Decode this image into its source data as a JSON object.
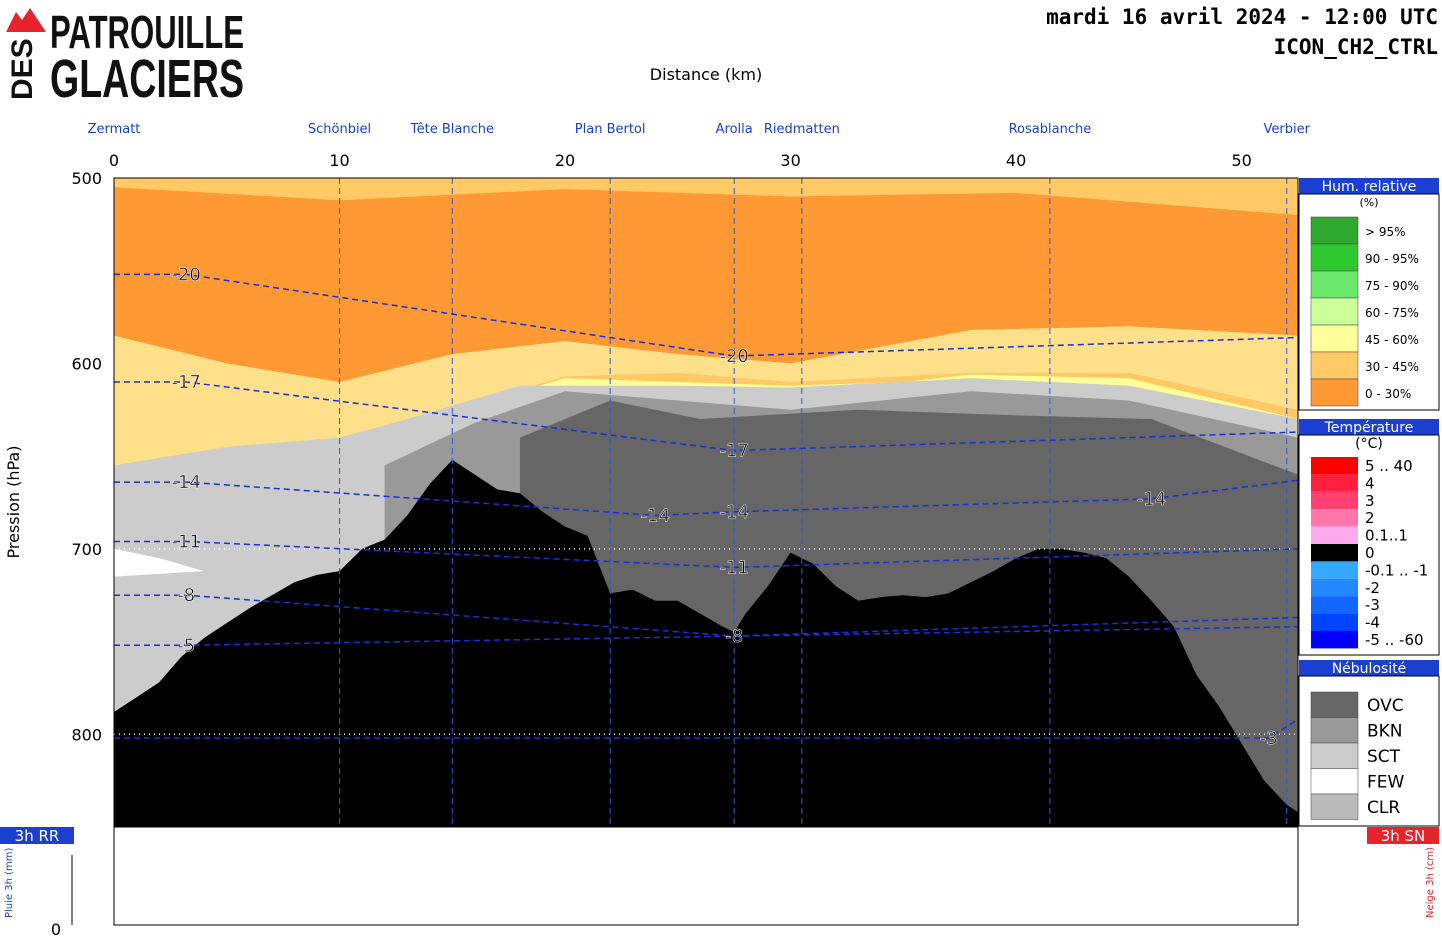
{
  "header": {
    "datetime": "mardi 16 avril 2024 - 12:00 UTC",
    "model": "ICON_CH2_CTRL",
    "logo_top": "PATROUILLE",
    "logo_side": "DES",
    "logo_bottom": "GLACIERS"
  },
  "chart_data": {
    "type": "heatmap",
    "title": "",
    "xlabel": "Distance (km)",
    "ylabel": "Pression (hPa)",
    "xlim": [
      0,
      52.5
    ],
    "ylim": [
      500,
      850
    ],
    "x_ticks": [
      0,
      10,
      20,
      30,
      40,
      50
    ],
    "y_ticks": [
      500,
      600,
      700,
      800
    ],
    "reference_lines_hPa": [
      700,
      800
    ],
    "waypoints": [
      {
        "name": "Zermatt",
        "km": 0
      },
      {
        "name": "Schönbiel",
        "km": 10
      },
      {
        "name": "Tête Blanche",
        "km": 15
      },
      {
        "name": "Plan Bertol",
        "km": 22
      },
      {
        "name": "Arolla",
        "km": 27.5
      },
      {
        "name": "Riedmatten",
        "km": 30.5
      },
      {
        "name": "Rosablanche",
        "km": 41.5
      },
      {
        "name": "Verbier",
        "km": 52
      }
    ],
    "terrain_pressure_hPa": {
      "km": [
        0,
        1,
        2,
        3,
        4,
        5,
        6,
        7,
        8,
        9,
        10,
        11,
        12,
        13,
        14,
        15,
        16,
        17,
        18,
        19,
        20,
        21,
        22,
        23,
        24,
        25,
        26,
        27,
        27.5,
        28,
        29,
        30,
        31,
        32,
        33,
        34,
        35,
        36,
        37,
        38,
        39,
        40,
        41,
        42,
        43,
        44,
        45,
        46,
        47,
        48,
        49,
        50,
        51,
        52,
        52.5
      ],
      "value": [
        788,
        780,
        772,
        758,
        748,
        740,
        732,
        725,
        718,
        714,
        712,
        700,
        695,
        682,
        665,
        652,
        660,
        668,
        670,
        680,
        688,
        693,
        724,
        722,
        728,
        728,
        735,
        742,
        745,
        735,
        720,
        702,
        708,
        720,
        728,
        726,
        725,
        726,
        724,
        718,
        712,
        705,
        700,
        700,
        702,
        705,
        715,
        728,
        742,
        768,
        785,
        805,
        825,
        838,
        842
      ]
    },
    "temperature_contours_C": [
      {
        "value": -20,
        "label_km": 3.2,
        "label_hPa": 552
      },
      {
        "value": -20,
        "label_km": 27.5,
        "label_hPa": 596
      },
      {
        "value": -17,
        "label_km": 3.2,
        "label_hPa": 610
      },
      {
        "value": -17,
        "label_km": 27.5,
        "label_hPa": 647
      },
      {
        "value": -14,
        "label_km": 3.2,
        "label_hPa": 664
      },
      {
        "value": -14,
        "label_km": 24.0,
        "label_hPa": 682
      },
      {
        "value": -14,
        "label_km": 27.5,
        "label_hPa": 680
      },
      {
        "value": -14,
        "label_km": 46.0,
        "label_hPa": 673
      },
      {
        "value": -11,
        "label_km": 3.2,
        "label_hPa": 696
      },
      {
        "value": -11,
        "label_km": 27.5,
        "label_hPa": 710
      },
      {
        "value": -8,
        "label_km": 3.2,
        "label_hPa": 725
      },
      {
        "value": -8,
        "label_km": 27.5,
        "label_hPa": 747
      },
      {
        "value": -5,
        "label_km": 3.2,
        "label_hPa": 752
      },
      {
        "value": -3,
        "label_km": 51.2,
        "label_hPa": 802
      }
    ],
    "precip_3h_mm": {
      "label": "3h RR",
      "axis_label": "Pluie 3h (mm)",
      "axis_min": 0,
      "values": []
    },
    "snow_3h_cm": {
      "label": "3h SN",
      "axis_label": "Neige 3h (cm)",
      "values": []
    },
    "legend": {
      "humidity": {
        "title": "Hum. relative",
        "unit": "(%)",
        "classes": [
          {
            "label": "> 95%",
            "color": "#2ea82e"
          },
          {
            "label": "90 - 95%",
            "color": "#2ec92e"
          },
          {
            "label": "75 - 90%",
            "color": "#6be86b"
          },
          {
            "label": "60 - 75%",
            "color": "#ccff99"
          },
          {
            "label": "45 - 60%",
            "color": "#ffff99"
          },
          {
            "label": "30 - 45%",
            "color": "#ffc966"
          },
          {
            "label": "0 - 30%",
            "color": "#ff9933"
          }
        ]
      },
      "temperature": {
        "title": "Température",
        "unit": "(°C)",
        "classes": [
          {
            "label": "5 .. 40",
            "color": "#ff0000"
          },
          {
            "label": "4",
            "color": "#ff2040"
          },
          {
            "label": "3",
            "color": "#ff4070"
          },
          {
            "label": "2",
            "color": "#ff77aa"
          },
          {
            "label": "0.1..1",
            "color": "#ffaaee"
          },
          {
            "label": "0",
            "color": "#000000"
          },
          {
            "label": "-0.1 .. -1",
            "color": "#33aaff"
          },
          {
            "label": "-2",
            "color": "#2288ff"
          },
          {
            "label": "-3",
            "color": "#1166ff"
          },
          {
            "label": "-4",
            "color": "#0044ff"
          },
          {
            "label": "-5 .. -60",
            "color": "#0000ff"
          }
        ]
      },
      "cloud": {
        "title": "Nébulosité",
        "classes": [
          {
            "label": "OVC",
            "color": "#666666"
          },
          {
            "label": "BKN",
            "color": "#999999"
          },
          {
            "label": "SCT",
            "color": "#cccccc"
          },
          {
            "label": "FEW",
            "color": "#ffffff"
          },
          {
            "label": "CLR",
            "color": "#bbbbbb"
          }
        ]
      }
    }
  }
}
